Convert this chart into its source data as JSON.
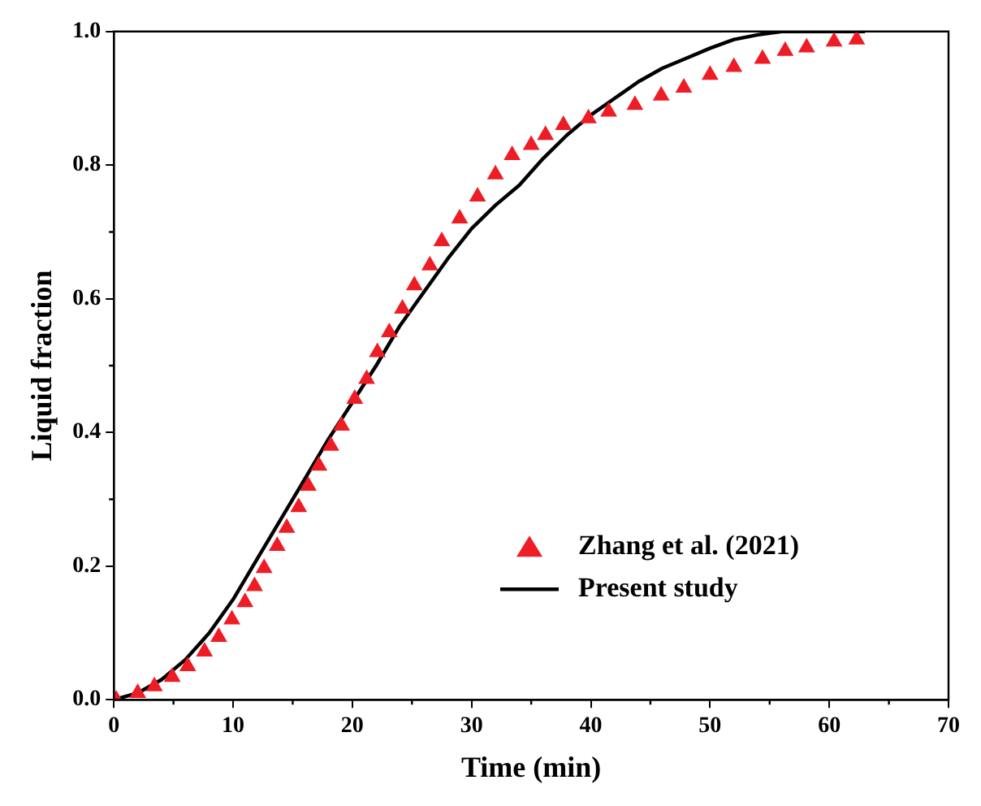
{
  "chart_data": {
    "type": "scatter",
    "xlabel": "Time (min)",
    "ylabel": "Liquid fraction",
    "xlim": [
      0,
      70
    ],
    "xticks": [
      0,
      10,
      20,
      30,
      40,
      50,
      60,
      70
    ],
    "ylim": [
      0,
      1
    ],
    "yticks": [
      {
        "value": 0,
        "label": "0.0"
      },
      0.2,
      0.4,
      0.6,
      0.8,
      {
        "value": 1,
        "label": "1.0"
      }
    ],
    "grid": false,
    "legend": "bottom right",
    "series": [
      {
        "name": "Zhang et al. (2021)",
        "type": "scatter",
        "marker": "triangle",
        "color": "#ee1c25",
        "x": [
          0.2,
          2,
          3.4,
          4.9,
          6.2,
          7.6,
          8.8,
          9.9,
          11,
          11.8,
          12.6,
          13.7,
          14.5,
          15.5,
          16.3,
          17.2,
          18.2,
          19.1,
          20.2,
          21.2,
          22.1,
          23.1,
          24.2,
          25.2,
          26.5,
          27.5,
          29,
          30.5,
          32,
          33.4,
          35,
          36.2,
          37.7,
          39.8,
          41.5,
          43.7,
          45.9,
          47.8,
          50,
          52,
          54.4,
          56.3,
          58.1,
          60.4,
          62.3
        ],
        "values": [
          0,
          0.01,
          0.02,
          0.034,
          0.05,
          0.072,
          0.094,
          0.12,
          0.146,
          0.17,
          0.197,
          0.23,
          0.257,
          0.288,
          0.32,
          0.35,
          0.38,
          0.41,
          0.45,
          0.48,
          0.52,
          0.55,
          0.585,
          0.62,
          0.65,
          0.686,
          0.72,
          0.753,
          0.786,
          0.815,
          0.83,
          0.845,
          0.86,
          0.87,
          0.88,
          0.89,
          0.904,
          0.916,
          0.935,
          0.947,
          0.959,
          0.971,
          0.976,
          0.985,
          0.988
        ]
      },
      {
        "name": "Present study",
        "type": "line",
        "marker": "none",
        "line_style": "solid",
        "color": "#000000",
        "x": [
          0,
          2,
          4,
          6,
          8,
          10,
          12,
          14,
          16,
          18,
          20,
          22,
          24,
          26,
          28,
          30,
          32,
          34,
          36,
          38,
          40,
          42,
          44,
          45,
          46,
          48,
          50,
          52,
          54,
          56,
          58,
          63
        ],
        "values": [
          0,
          0.01,
          0.03,
          0.06,
          0.1,
          0.15,
          0.21,
          0.27,
          0.33,
          0.39,
          0.445,
          0.5,
          0.56,
          0.61,
          0.66,
          0.705,
          0.74,
          0.77,
          0.81,
          0.845,
          0.875,
          0.9,
          0.925,
          0.935,
          0.945,
          0.96,
          0.975,
          0.988,
          0.995,
          1.0,
          1.0,
          1.0
        ]
      }
    ]
  }
}
